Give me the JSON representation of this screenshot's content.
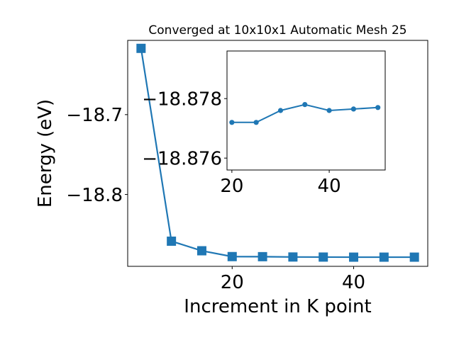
{
  "chart_data": [
    {
      "type": "line",
      "title": "Converged at 10x10x1 Automatic Mesh 25",
      "xlabel": "Increment in K point",
      "ylabel": "Energy (eV)",
      "xlim": [
        2.8,
        52.2
      ],
      "ylim": [
        -18.89,
        -18.607
      ],
      "xticks": [
        20,
        40
      ],
      "yticks": [
        -18.8,
        -18.7
      ],
      "xtick_labels": [
        "20",
        "40"
      ],
      "ytick_labels": [
        "−18.8",
        "−18.7"
      ],
      "marker": "square",
      "color": "#1f77b4",
      "grid": false,
      "series": [
        {
          "x": [
            5,
            10,
            15,
            20,
            25,
            30,
            35,
            40,
            45,
            50
          ],
          "values": [
            -18.617,
            -18.8585,
            -18.8705,
            -18.8778,
            -18.8779,
            -18.8783,
            -18.8784,
            -18.8785,
            -18.8785,
            -18.8785
          ]
        }
      ]
    },
    {
      "type": "line",
      "title": "",
      "xlabel": "",
      "ylabel": "",
      "xlim": [
        19.0,
        51.5
      ],
      "ylim": [
        -18.8756,
        -18.8796
      ],
      "xticks": [
        20,
        40
      ],
      "yticks": [
        -18.878,
        -18.876
      ],
      "xtick_labels": [
        "20",
        "40"
      ],
      "ytick_labels": [
        "−18.878",
        "−18.876"
      ],
      "marker": "circle",
      "color": "#1f77b4",
      "grid": false,
      "series": [
        {
          "x": [
            20,
            25,
            30,
            35,
            40,
            45,
            50
          ],
          "values": [
            -18.8772,
            -18.8772,
            -18.8776,
            -18.8778,
            -18.8776,
            -18.87765,
            -18.8777
          ]
        }
      ]
    }
  ]
}
